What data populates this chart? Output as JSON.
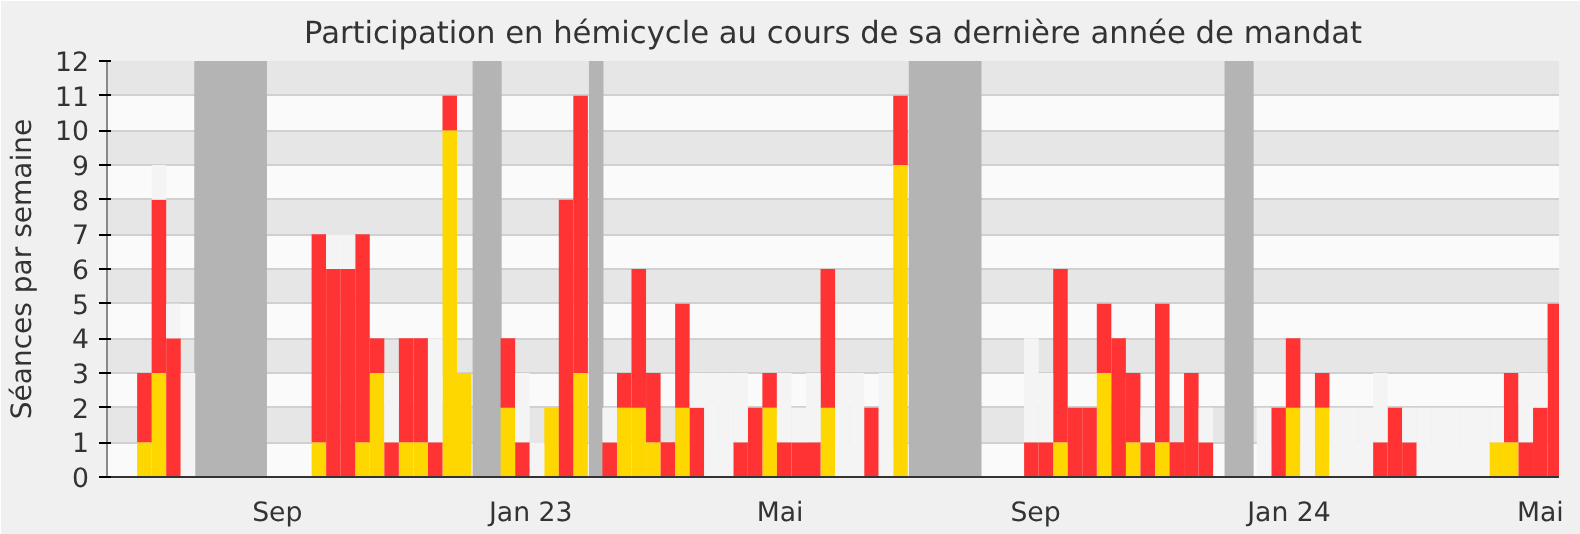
{
  "chart_data": {
    "type": "bar",
    "stacked": true,
    "title": "Participation en hémicycle au cours de sa dernière année de mandat",
    "ylabel": "Séances par semaine",
    "x": [
      "2022-06-29",
      "2022-07-06",
      "2022-07-13",
      "2022-07-20",
      "2022-09-21",
      "2022-09-28",
      "2022-10-05",
      "2022-10-12",
      "2022-10-19",
      "2022-10-26",
      "2022-11-02",
      "2022-11-09",
      "2022-11-16",
      "2022-11-23",
      "2022-11-30",
      "2022-12-21",
      "2022-12-28",
      "2023-01-04",
      "2023-01-11",
      "2023-01-18",
      "2023-01-25",
      "2023-02-08",
      "2023-02-15",
      "2023-02-22",
      "2023-03-01",
      "2023-03-08",
      "2023-03-15",
      "2023-03-22",
      "2023-03-29",
      "2023-04-05",
      "2023-04-12",
      "2023-04-19",
      "2023-04-26",
      "2023-05-03",
      "2023-05-10",
      "2023-05-17",
      "2023-05-24",
      "2023-05-31",
      "2023-06-07",
      "2023-06-14",
      "2023-06-21",
      "2023-06-28",
      "2023-08-30",
      "2023-09-06",
      "2023-09-13",
      "2023-09-20",
      "2023-09-27",
      "2023-10-04",
      "2023-10-11",
      "2023-10-18",
      "2023-10-25",
      "2023-11-01",
      "2023-11-08",
      "2023-11-15",
      "2023-11-22",
      "2023-12-20",
      "2023-12-27",
      "2024-01-03",
      "2024-01-10",
      "2024-01-17",
      "2024-01-24",
      "2024-01-31",
      "2024-02-07",
      "2024-02-14",
      "2024-02-21",
      "2024-02-28",
      "2024-03-06",
      "2024-03-13",
      "2024-03-20",
      "2024-03-27",
      "2024-04-03",
      "2024-04-10",
      "2024-04-17",
      "2024-04-24",
      "2024-05-01",
      "2024-05-08"
    ],
    "series": [
      {
        "color": "#ffd700",
        "values": [
          1,
          3,
          0,
          0,
          1,
          0,
          0,
          1,
          3,
          0,
          1,
          1,
          0,
          10,
          3,
          2,
          0,
          0,
          2,
          0,
          3,
          0,
          2,
          2,
          1,
          0,
          2,
          0,
          0,
          0,
          0,
          0,
          2,
          0,
          0,
          0,
          2,
          0,
          0,
          0,
          0,
          9,
          0,
          0,
          1,
          0,
          0,
          3,
          0,
          1,
          0,
          1,
          0,
          0,
          0,
          0,
          0,
          2,
          0,
          2,
          0,
          0,
          0,
          0,
          0,
          0,
          0,
          0,
          0,
          0,
          0,
          1,
          1,
          0,
          0,
          0
        ]
      },
      {
        "color": "#ff3333",
        "values": [
          2,
          5,
          4,
          0,
          6,
          6,
          6,
          6,
          1,
          1,
          3,
          3,
          1,
          1,
          0,
          2,
          1,
          0,
          0,
          8,
          8,
          1,
          1,
          4,
          2,
          1,
          3,
          2,
          0,
          0,
          1,
          2,
          1,
          1,
          1,
          1,
          4,
          0,
          0,
          2,
          0,
          2,
          1,
          1,
          5,
          2,
          2,
          2,
          4,
          2,
          1,
          4,
          1,
          3,
          1,
          0,
          2,
          2,
          0,
          1,
          0,
          0,
          0,
          1,
          2,
          1,
          0,
          0,
          0,
          0,
          0,
          0,
          2,
          1,
          2,
          5
        ]
      },
      {
        "color": "#f4f4f4",
        "values": [
          0,
          1,
          1,
          3,
          0,
          1,
          1,
          0,
          0,
          2,
          0,
          0,
          3,
          0,
          0,
          0,
          2,
          1,
          0,
          0,
          0,
          1,
          0,
          0,
          0,
          0,
          0,
          1,
          3,
          3,
          2,
          0,
          0,
          2,
          1,
          2,
          0,
          3,
          3,
          0,
          3,
          0,
          3,
          2,
          0,
          0,
          0,
          0,
          0,
          0,
          1,
          0,
          0,
          0,
          1,
          2,
          0,
          0,
          2,
          0,
          2,
          2,
          2,
          2,
          0,
          1,
          2,
          2,
          2,
          2,
          2,
          1,
          0,
          2,
          1,
          0
        ]
      }
    ],
    "xlim": [
      "2022-06-11",
      "2024-05-10"
    ],
    "xticks": [
      {
        "value": "2022-09-01",
        "label": "Sep"
      },
      {
        "value": "2023-01-01",
        "label": "Jan 23"
      },
      {
        "value": "2023-05-01",
        "label": "Mai"
      },
      {
        "value": "2023-09-01",
        "label": "Sep"
      },
      {
        "value": "2024-01-01",
        "label": "Jan 24"
      },
      {
        "value": "2024-05-01",
        "label": "Mai"
      }
    ],
    "ylim": [
      0,
      12
    ],
    "yticks": [
      0,
      1,
      2,
      3,
      4,
      5,
      6,
      7,
      8,
      9,
      10,
      11,
      12
    ],
    "grid": "y",
    "bands": [
      {
        "axis": "x",
        "from": "2022-07-23",
        "to": "2022-08-27",
        "color": "#b4b4b4"
      },
      {
        "axis": "x",
        "from": "2022-12-04",
        "to": "2022-12-18",
        "color": "#b4b4b4"
      },
      {
        "axis": "x",
        "from": "2023-01-29",
        "to": "2023-02-05",
        "color": "#b4b4b4"
      },
      {
        "axis": "x",
        "from": "2023-07-02",
        "to": "2023-08-06",
        "color": "#b4b4b4"
      },
      {
        "axis": "x",
        "from": "2023-12-01",
        "to": "2023-12-15",
        "color": "#b4b4b4"
      }
    ]
  }
}
